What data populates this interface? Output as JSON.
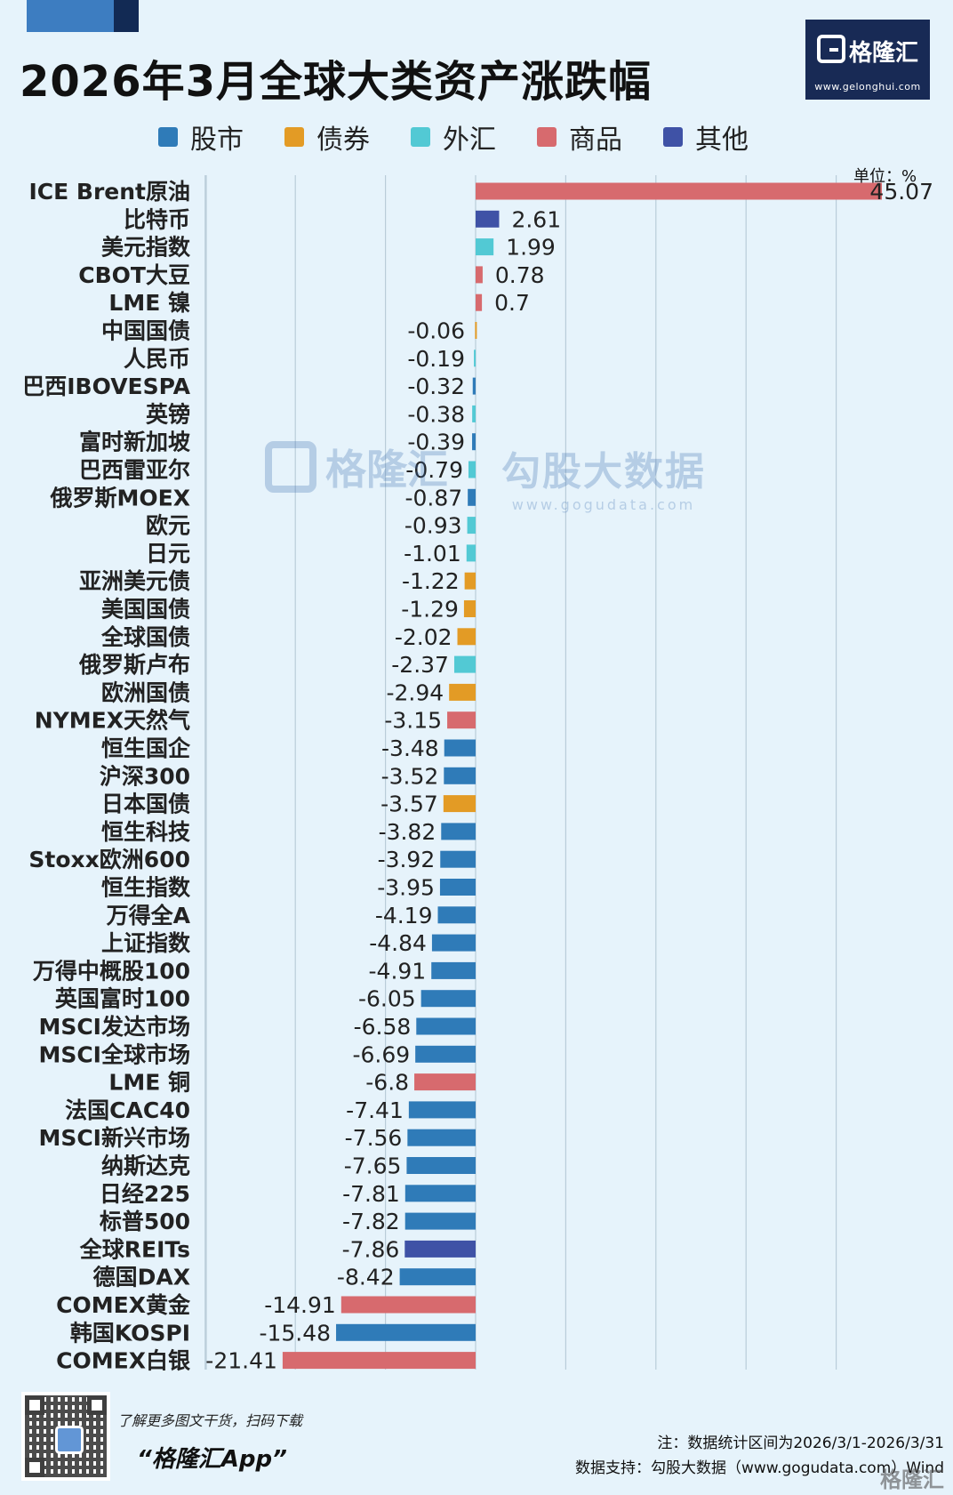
{
  "header": {
    "title": "2026年3月全球大类资产涨跌幅",
    "logo_name": "格隆汇",
    "logo_url": "www.gelonghui.com"
  },
  "legend": [
    {
      "label": "股市",
      "color": "#2f7bb8"
    },
    {
      "label": "债券",
      "color": "#e39b25"
    },
    {
      "label": "外汇",
      "color": "#52c9d4"
    },
    {
      "label": "商品",
      "color": "#d76a6e"
    },
    {
      "label": "其他",
      "color": "#3f52a6"
    }
  ],
  "unit_label": "单位：%",
  "watermark": {
    "name": "格隆汇",
    "site_name": "勾股大数据",
    "site_url": "www.gogudata.com"
  },
  "chart_data": {
    "type": "bar",
    "orientation": "horizontal",
    "unit": "%",
    "xlim": [
      -25,
      45.07
    ],
    "grid": true,
    "categories": [
      "ICE Brent原油",
      "比特币",
      "美元指数",
      "CBOT大豆",
      "LME 镍",
      "中国国债",
      "人民币",
      "巴西IBOVESPA",
      "英镑",
      "富时新加坡",
      "巴西雷亚尔",
      "俄罗斯MOEX",
      "欧元",
      "日元",
      "亚洲美元债",
      "美国国债",
      "全球国债",
      "俄罗斯卢布",
      "欧洲国债",
      "NYMEX天然气",
      "恒生国企",
      "沪深300",
      "日本国债",
      "恒生科技",
      "Stoxx欧洲600",
      "恒生指数",
      "万得全A",
      "上证指数",
      "万得中概股100",
      "英国富时100",
      "MSCI发达市场",
      "MSCI全球市场",
      "LME 铜",
      "法国CAC40",
      "MSCI新兴市场",
      "纳斯达克",
      "日经225",
      "标普500",
      "全球REITs",
      "德国DAX",
      "COMEX黄金",
      "韩国KOSPI",
      "COMEX白银"
    ],
    "values": [
      45.07,
      2.61,
      1.99,
      0.78,
      0.7,
      -0.06,
      -0.19,
      -0.32,
      -0.38,
      -0.39,
      -0.79,
      -0.87,
      -0.93,
      -1.01,
      -1.22,
      -1.29,
      -2.02,
      -2.37,
      -2.94,
      -3.15,
      -3.48,
      -3.52,
      -3.57,
      -3.82,
      -3.92,
      -3.95,
      -4.19,
      -4.84,
      -4.91,
      -6.05,
      -6.58,
      -6.69,
      -6.8,
      -7.41,
      -7.56,
      -7.65,
      -7.81,
      -7.82,
      -7.86,
      -8.42,
      -14.91,
      -15.48,
      -21.41
    ],
    "value_labels": [
      "45.07",
      "2.61",
      "1.99",
      "0.78",
      "0.7",
      "-0.06",
      "-0.19",
      "-0.32",
      "-0.38",
      "-0.39",
      "-0.79",
      "-0.87",
      "-0.93",
      "-1.01",
      "-1.22",
      "-1.29",
      "-2.02",
      "-2.37",
      "-2.94",
      "-3.15",
      "-3.48",
      "-3.52",
      "-3.57",
      "-3.82",
      "-3.92",
      "-3.95",
      "-4.19",
      "-4.84",
      "-4.91",
      "-6.05",
      "-6.58",
      "-6.69",
      "-6.8",
      "-7.41",
      "-7.56",
      "-7.65",
      "-7.81",
      "-7.82",
      "-7.86",
      "-8.42",
      "-14.91",
      "-15.48",
      "-21.41"
    ],
    "asset_class": [
      "商品",
      "其他",
      "外汇",
      "商品",
      "商品",
      "债券",
      "外汇",
      "股市",
      "外汇",
      "股市",
      "外汇",
      "股市",
      "外汇",
      "外汇",
      "债券",
      "债券",
      "债券",
      "外汇",
      "债券",
      "商品",
      "股市",
      "股市",
      "债券",
      "股市",
      "股市",
      "股市",
      "股市",
      "股市",
      "股市",
      "股市",
      "股市",
      "股市",
      "商品",
      "股市",
      "股市",
      "股市",
      "股市",
      "股市",
      "其他",
      "股市",
      "商品",
      "股市",
      "商品"
    ]
  },
  "footer": {
    "promo_line": "了解更多图文干货，扫码下载",
    "promo_app": "“格隆汇App”",
    "note": "注：数据统计区间为2026/3/1-2026/3/31",
    "source": "数据支持：勾股大数据（www.gogudata.com）Wind",
    "logo_name": "格隆汇"
  }
}
